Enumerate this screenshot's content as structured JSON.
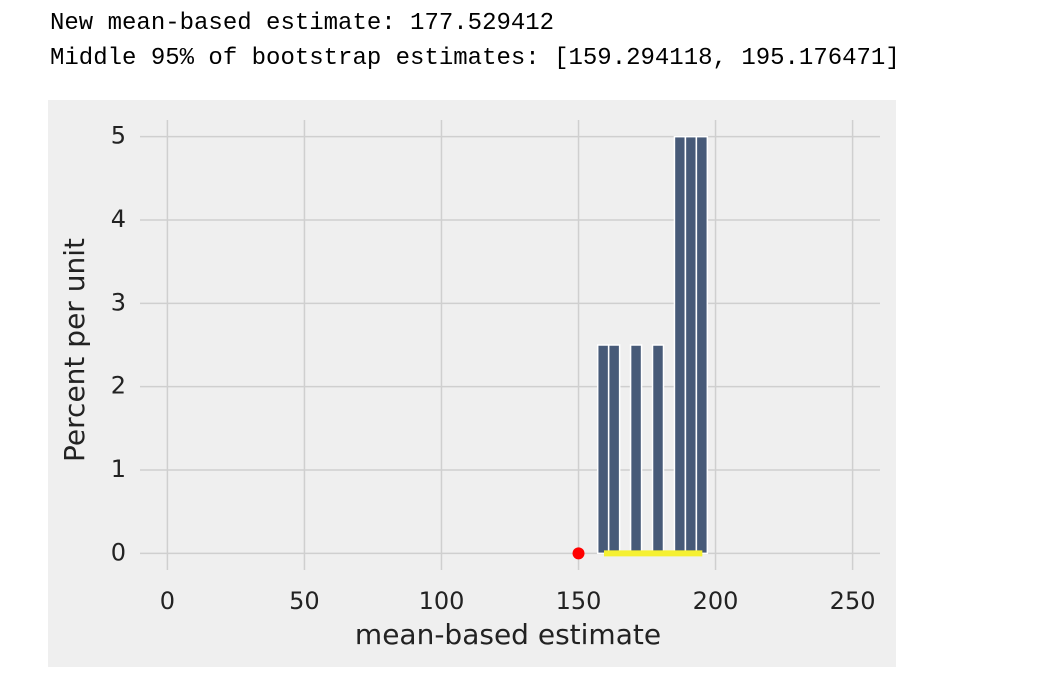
{
  "output": [
    "New mean-based estimate: 177.529412",
    "Middle 95% of bootstrap estimates: [159.294118, 195.176471]"
  ],
  "chart_data": {
    "type": "histogram",
    "xlabel": "mean-based estimate",
    "ylabel": "Percent per unit",
    "bins": [
      157,
      161,
      165,
      169,
      173,
      177,
      181,
      185,
      189,
      193,
      197
    ],
    "values": [
      2.5,
      2.5,
      0,
      2.5,
      0,
      2.5,
      0,
      5,
      5,
      5
    ],
    "color": "#475a78",
    "interval": [
      159.294118,
      195.176471
    ],
    "interval_color": "#f5f032",
    "point": [
      150,
      0
    ],
    "point_color": "#ff0000",
    "xlim": [
      -10,
      260
    ],
    "xticks": [
      0,
      50,
      100,
      150,
      200,
      250
    ],
    "ylim": [
      -0.2,
      5.2
    ],
    "yticks": [
      0,
      1,
      2,
      3,
      4,
      5
    ],
    "grid": true
  }
}
